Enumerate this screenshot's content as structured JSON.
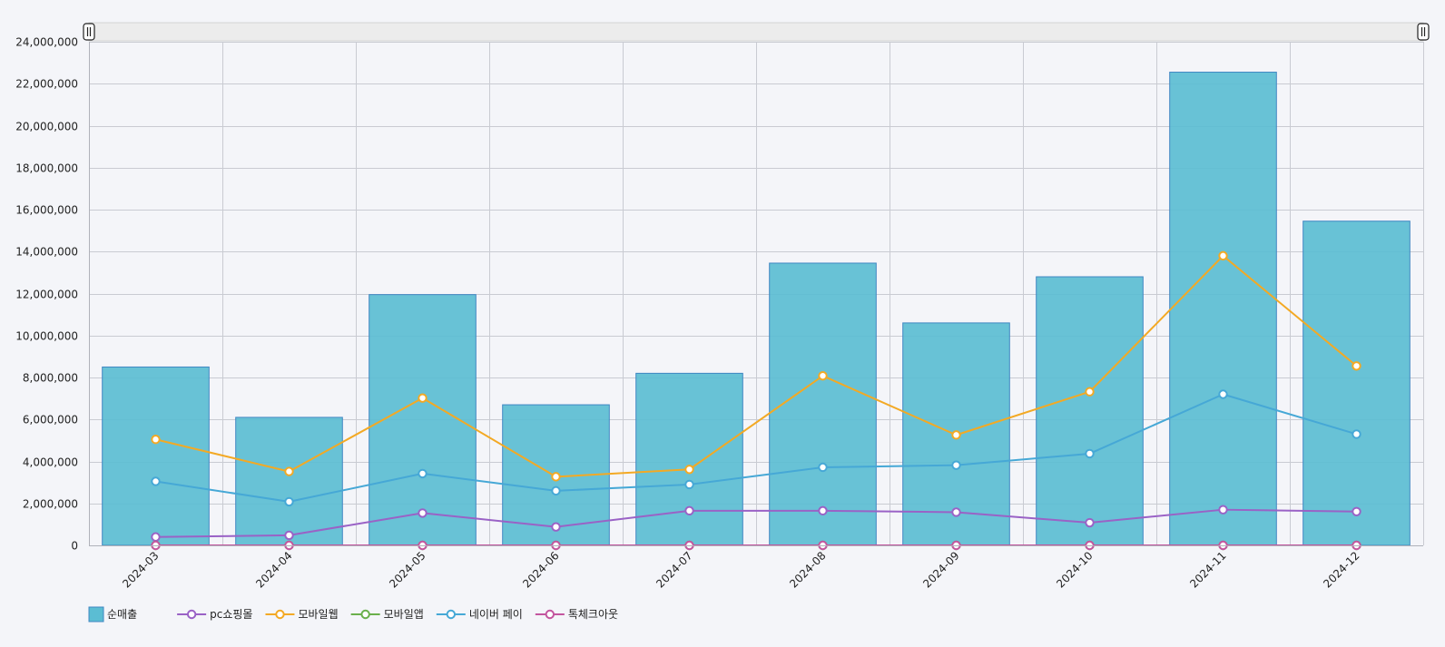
{
  "colors": {
    "background": "#f4f5f9",
    "grid": "#c9cbd2",
    "bar_fill": "#5bbdd3",
    "bar_stroke": "#3f86c2",
    "pc": "#9a62c6",
    "mobile_web": "#f3a924",
    "mobile_app": "#6ab04c",
    "naver_pay": "#46a8d6",
    "toss": "#c3569f",
    "navigator_bg": "#ececec"
  },
  "chart_data": {
    "type": "bar",
    "title": "",
    "xlabel": "",
    "ylabel": "",
    "ylim": [
      0,
      24000000
    ],
    "y_ticks": [
      0,
      2000000,
      4000000,
      6000000,
      8000000,
      10000000,
      12000000,
      14000000,
      16000000,
      18000000,
      20000000,
      22000000,
      24000000
    ],
    "y_tick_labels": [
      "0",
      "2,000,000",
      "4,000,000",
      "6,000,000",
      "8,000,000",
      "10,000,000",
      "12,000,000",
      "14,000,000",
      "16,000,000",
      "18,000,000",
      "20,000,000",
      "22,000,000",
      "24,000,000"
    ],
    "grid": true,
    "legend_position": "bottom-left",
    "categories": [
      "2024-03",
      "2024-04",
      "2024-05",
      "2024-06",
      "2024-07",
      "2024-08",
      "2024-09",
      "2024-10",
      "2024-11",
      "2024-12"
    ],
    "series": [
      {
        "name": "순매출",
        "kind": "bar",
        "color": "#5bbdd3",
        "values": [
          8500000,
          6100000,
          11950000,
          6700000,
          8200000,
          13450000,
          10600000,
          12800000,
          22550000,
          15450000
        ]
      },
      {
        "name": "pc쇼핑몰",
        "kind": "line",
        "color": "#9a62c6",
        "values": [
          400000,
          480000,
          1540000,
          880000,
          1650000,
          1650000,
          1580000,
          1080000,
          1700000,
          1610000
        ]
      },
      {
        "name": "모바일웹",
        "kind": "line",
        "color": "#f3a924",
        "values": [
          5050000,
          3520000,
          7020000,
          3270000,
          3620000,
          8080000,
          5260000,
          7320000,
          13800000,
          8550000
        ]
      },
      {
        "name": "모바일앱",
        "kind": "line",
        "color": "#6ab04c",
        "values": [
          0,
          0,
          0,
          0,
          0,
          0,
          0,
          0,
          0,
          0
        ]
      },
      {
        "name": "네이버 페이",
        "kind": "line",
        "color": "#46a8d6",
        "values": [
          3050000,
          2080000,
          3420000,
          2600000,
          2900000,
          3720000,
          3820000,
          4370000,
          7200000,
          5300000
        ]
      },
      {
        "name": "톡체크아웃",
        "kind": "line",
        "color": "#c3569f",
        "values": [
          0,
          0,
          0,
          0,
          0,
          0,
          0,
          0,
          0,
          0
        ]
      }
    ]
  }
}
